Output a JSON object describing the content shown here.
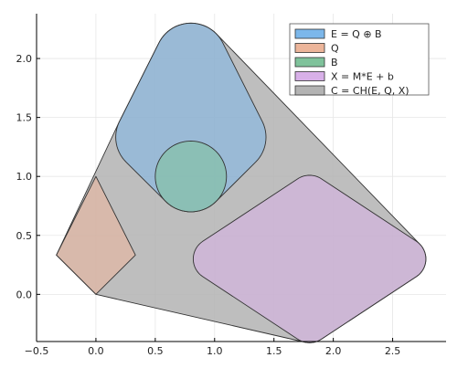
{
  "chart_data": {
    "type": "area",
    "xlim": [
      -0.5,
      2.95
    ],
    "ylim": [
      -0.4,
      2.38
    ],
    "xticks": [
      -0.5,
      0.0,
      0.5,
      1.0,
      1.5,
      2.0,
      2.5
    ],
    "yticks": [
      0.0,
      0.5,
      1.0,
      1.5,
      2.0
    ],
    "xtick_labels": [
      "−0.5",
      "0.0",
      "0.5",
      "1.0",
      "1.5",
      "2.0",
      "2.5"
    ],
    "ytick_labels": [
      "0.0",
      "0.5",
      "1.0",
      "1.5",
      "2.0"
    ],
    "grid": true,
    "legend_position": "top-right",
    "series": [
      {
        "name": "E = Q ⊕ B",
        "color": "#7cb7ea",
        "shape": "minkowski-sum",
        "quad": [
          [
            0,
            0
          ],
          [
            0.333,
            0.333
          ],
          [
            0,
            1
          ],
          [
            -0.333,
            0.333
          ]
        ],
        "offset": [
          0.8,
          1.0
        ],
        "radius": 0.3
      },
      {
        "name": "Q",
        "color": "#ecb59a",
        "shape": "polygon",
        "points": [
          [
            0,
            0
          ],
          [
            0.333,
            0.333
          ],
          [
            0,
            1
          ],
          [
            -0.333,
            0.333
          ]
        ]
      },
      {
        "name": "B",
        "color": "#7fc29b",
        "shape": "circle",
        "center": [
          0.8,
          1.0
        ],
        "radius": 0.3
      },
      {
        "name": "X = M*E + b",
        "color": "#d8b0e8",
        "shape": "minkowski-sum",
        "quad": [
          [
            1.8,
            -0.23
          ],
          [
            2.6,
            0.3
          ],
          [
            1.8,
            0.83
          ],
          [
            1.0,
            0.3
          ]
        ],
        "offset": [
          0.0,
          0.0
        ],
        "radius": 0.18
      },
      {
        "name": "C = CH(E, Q, X)",
        "color": "#b3b3b3",
        "shape": "convex-hull"
      }
    ]
  }
}
